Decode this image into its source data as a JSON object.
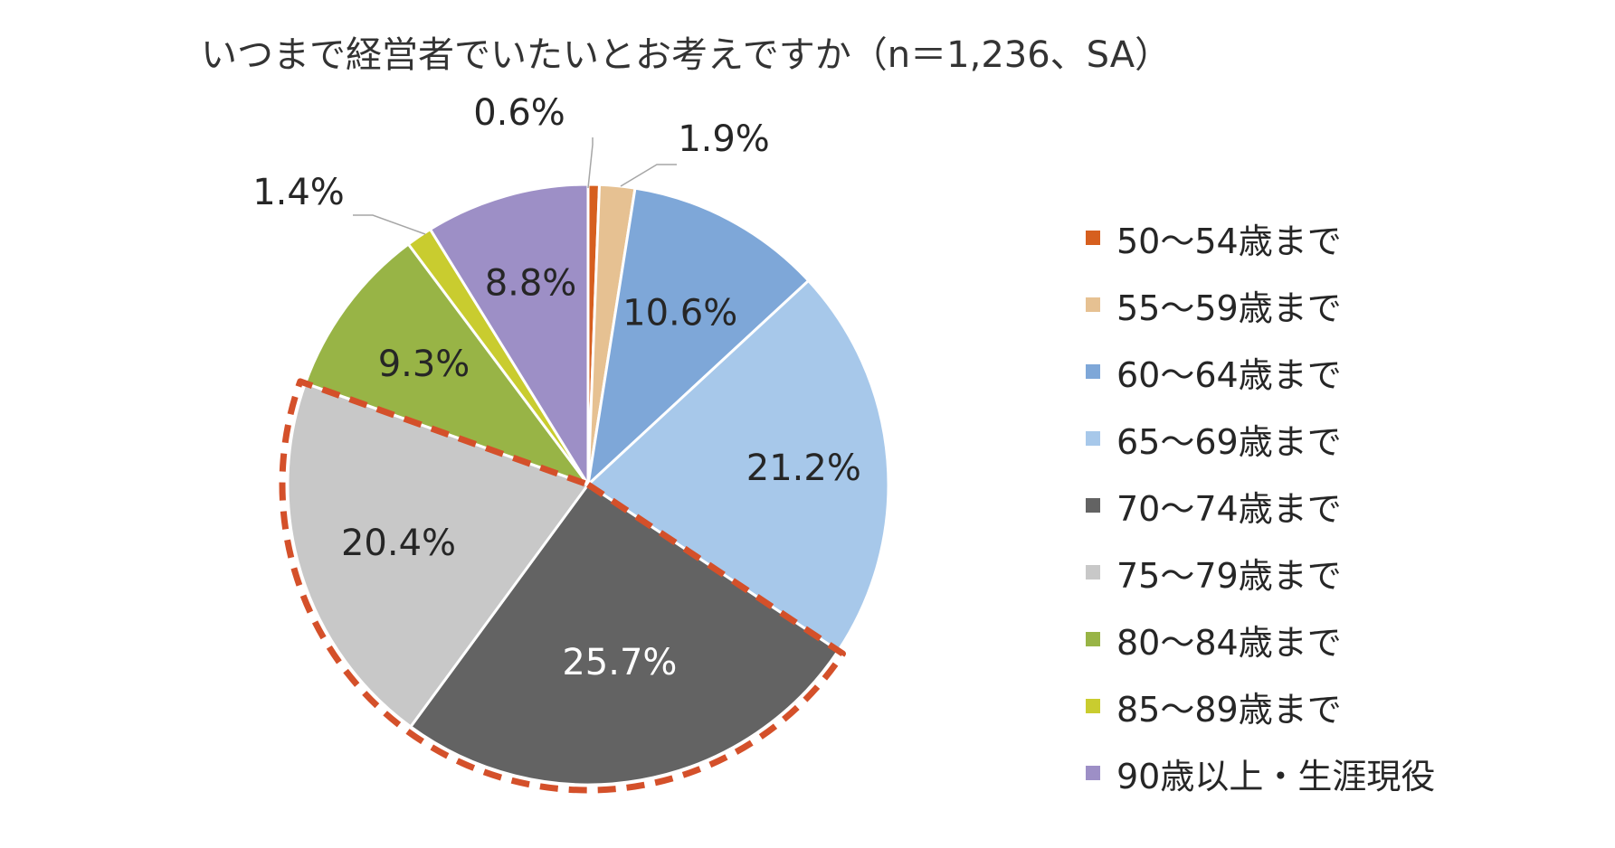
{
  "chart_data": {
    "type": "pie",
    "title": "いつまで経営者でいたいとお考えですか（n＝1,236、SA）",
    "slices": [
      {
        "label": "50～54歳まで",
        "value": 0.6,
        "display": "0.6%",
        "color": "#d65f1f"
      },
      {
        "label": "55～59歳まで",
        "value": 1.9,
        "display": "1.9%",
        "color": "#e6c192"
      },
      {
        "label": "60～64歳まで",
        "value": 10.6,
        "display": "10.6%",
        "color": "#7ea7d8"
      },
      {
        "label": "65～69歳まで",
        "value": 21.2,
        "display": "21.2%",
        "color": "#a7c8ea"
      },
      {
        "label": "70～74歳まで",
        "value": 25.7,
        "display": "25.7%",
        "color": "#636363"
      },
      {
        "label": "75～79歳まで",
        "value": 20.4,
        "display": "20.4%",
        "color": "#c8c8c8"
      },
      {
        "label": "80～84歳まで",
        "value": 9.3,
        "display": "9.3%",
        "color": "#98b446"
      },
      {
        "label": "85～89歳まで",
        "value": 1.4,
        "display": "1.4%",
        "color": "#c9cc2f"
      },
      {
        "label": "90歳以上・生涯現役",
        "value": 8.8,
        "display": "8.8%",
        "color": "#9d8fc6"
      }
    ],
    "highlighted": [
      "70～74歳まで",
      "75～79歳まで"
    ],
    "highlight_color": "#d4502a",
    "legend_position": "right"
  }
}
